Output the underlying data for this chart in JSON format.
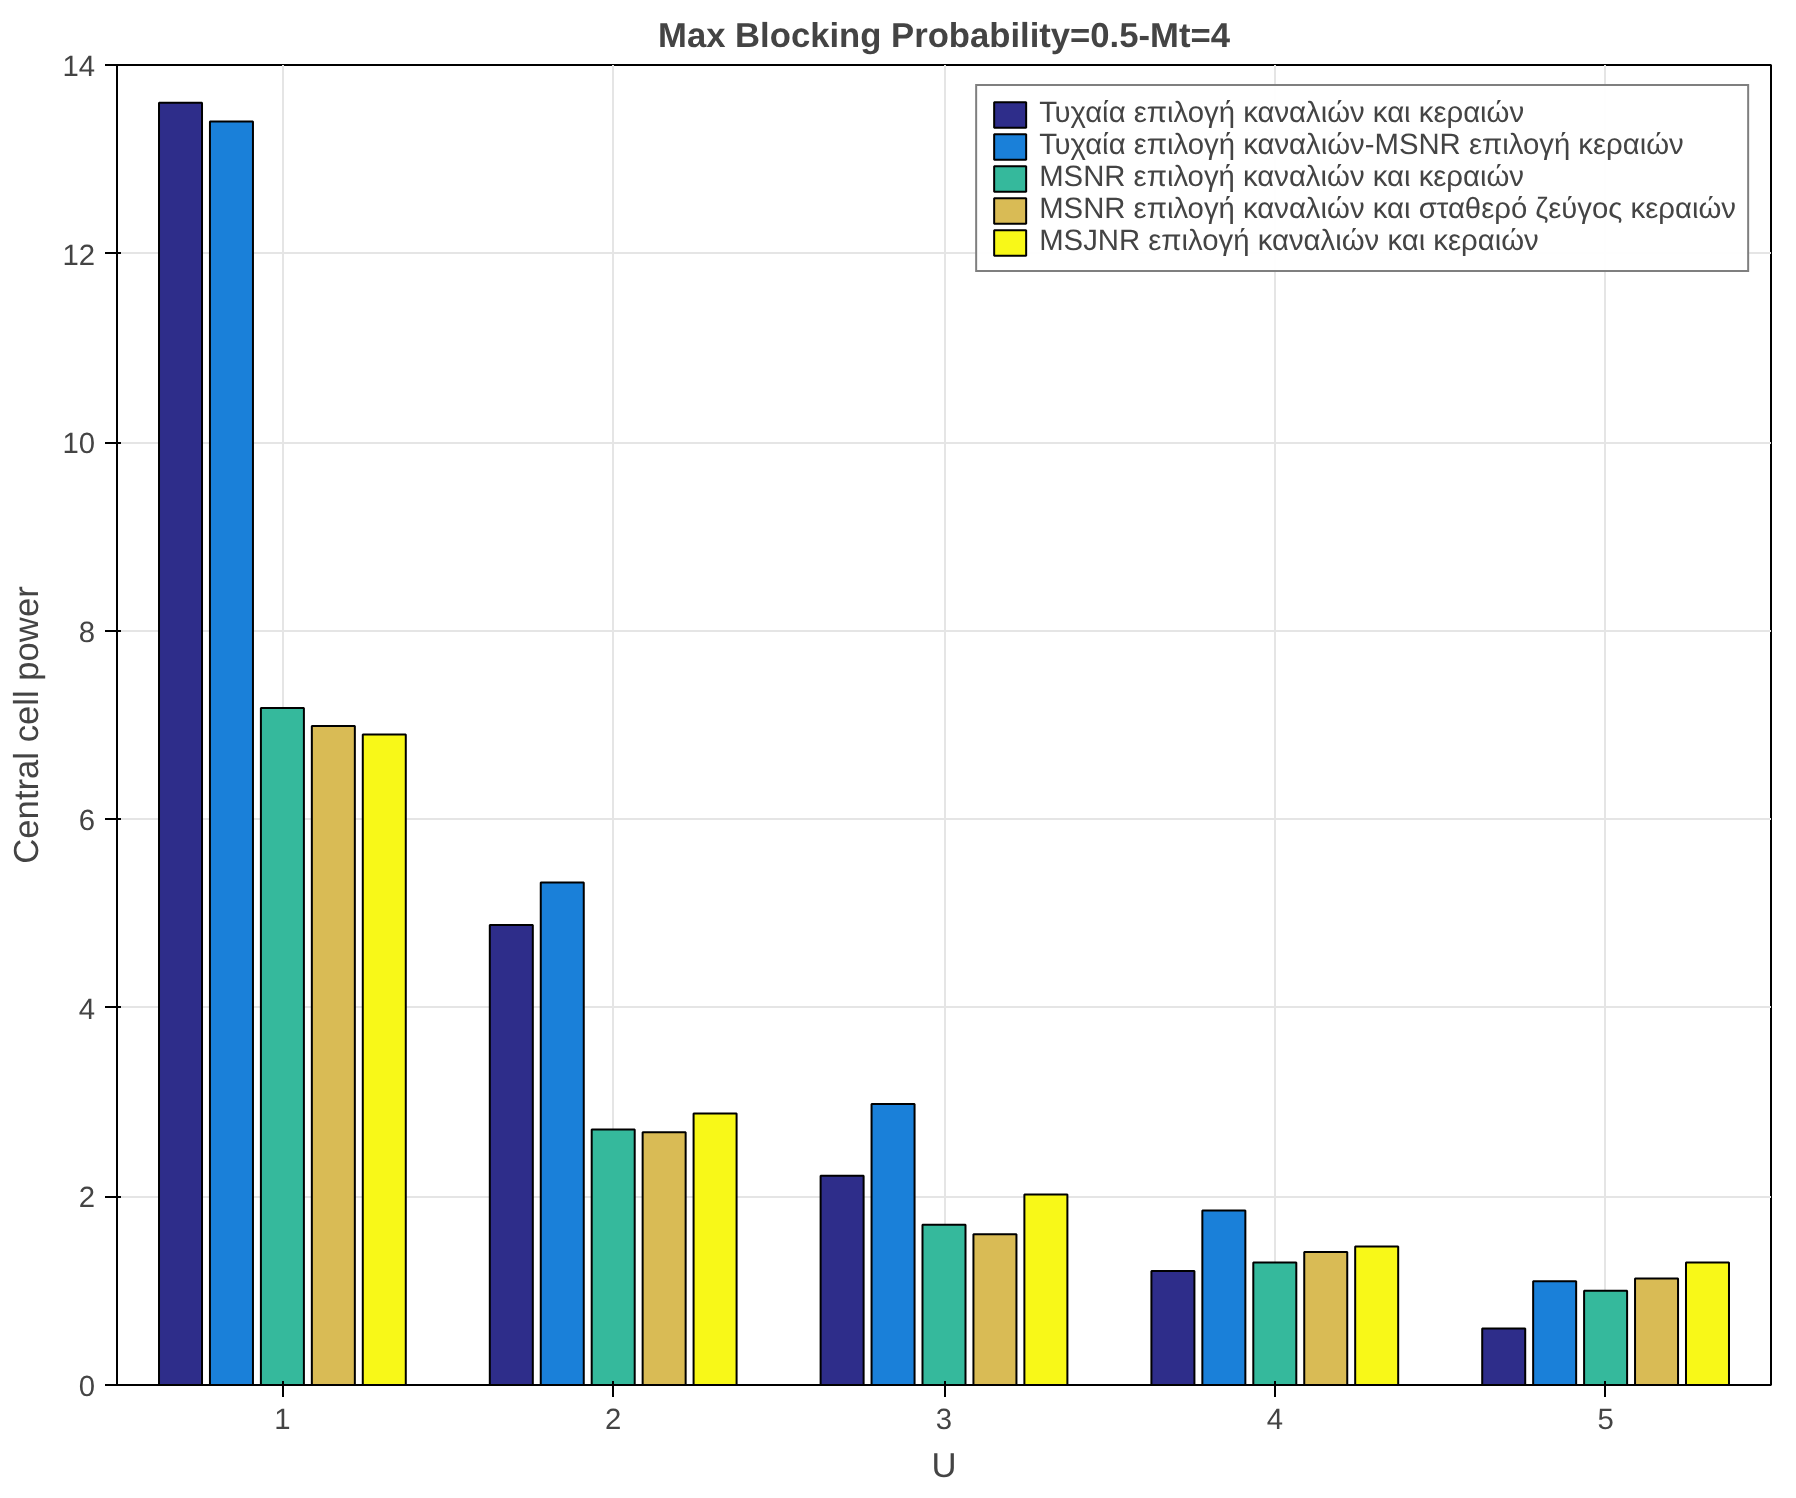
{
  "chart_data": {
    "type": "bar",
    "title": "Max Blocking Probability=0.5-Mt=4",
    "xlabel": "U",
    "ylabel": "Central cell power",
    "categories": [
      "1",
      "2",
      "3",
      "4",
      "5"
    ],
    "ylim": [
      0,
      14
    ],
    "yticks": [
      0,
      2,
      4,
      6,
      8,
      10,
      12,
      14
    ],
    "grid": true,
    "legend": "top right",
    "series": [
      {
        "name": "Τυχαία επιλογή καναλιών και κεραιών",
        "color": "#2e2d8a",
        "values": [
          13.6,
          4.88,
          2.22,
          1.21,
          0.6
        ]
      },
      {
        "name": "Τυχαία επιλογή καναλιών-MSNR επιλογή κεραιών",
        "color": "#1a80d9",
        "values": [
          13.4,
          5.33,
          2.98,
          1.85,
          1.1
        ]
      },
      {
        "name": "MSNR επιλογή καναλιών και κεραιών",
        "color": "#35b99c",
        "values": [
          7.18,
          2.71,
          1.7,
          1.3,
          1.0
        ]
      },
      {
        "name": "MSNR επιλογή καναλιών και σταθερό ζεύγος κεραιών",
        "color": "#d9bb55",
        "values": [
          6.99,
          2.68,
          1.6,
          1.41,
          1.13
        ]
      },
      {
        "name": "MSJNR επιλογή καναλιών και κεραιών",
        "color": "#f8f818",
        "values": [
          6.9,
          2.88,
          2.02,
          1.47,
          1.3
        ]
      }
    ]
  }
}
